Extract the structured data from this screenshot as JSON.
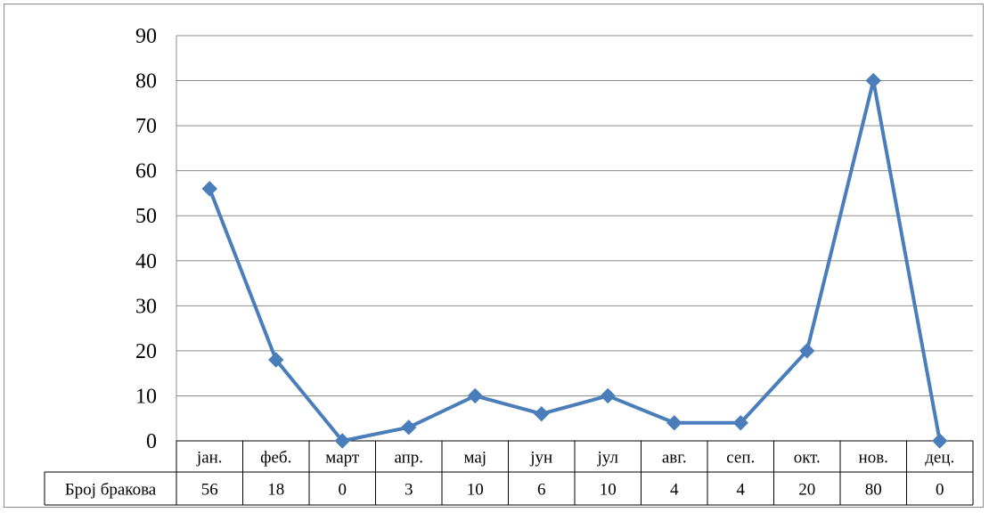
{
  "chart_data": {
    "type": "line",
    "categories": [
      "јан.",
      "феб.",
      "март",
      "апр.",
      "мај",
      "јун",
      "јул",
      "авг.",
      "сеп.",
      "окт.",
      "нов.",
      "дец."
    ],
    "series": [
      {
        "name": "Број бракова",
        "values": [
          56,
          18,
          0,
          3,
          10,
          6,
          10,
          4,
          4,
          20,
          80,
          0
        ],
        "color": "#4a7ebb"
      }
    ],
    "ylim": [
      0,
      90
    ],
    "yticks": [
      0,
      10,
      20,
      30,
      40,
      50,
      60,
      70,
      80,
      90
    ],
    "grid": true,
    "marker": "diamond",
    "data_table": true
  }
}
